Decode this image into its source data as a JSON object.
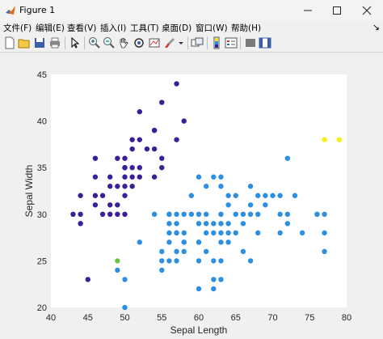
{
  "window": {
    "title": "Figure 1",
    "controls": {
      "minimize": "─",
      "maximize": "☐",
      "close": "✕"
    }
  },
  "menu": {
    "items": [
      "文件(F)",
      "编辑(E)",
      "查看(V)",
      "插入(I)",
      "工具(T)",
      "桌面(D)",
      "窗口(W)",
      "帮助(H)"
    ],
    "overflow": "↘"
  },
  "toolbar": {
    "icons": [
      "new-figure-icon",
      "open-file-icon",
      "save-icon",
      "print-icon",
      "select-pointer-icon",
      "zoom-in-icon",
      "zoom-out-icon",
      "pan-hand-icon",
      "rotate-3d-icon",
      "data-cursor-icon",
      "brush-icon",
      "brush-dropdown-icon",
      "link-plot-icon",
      "insert-colorbar-icon",
      "insert-legend-icon",
      "hide-plot-tools-icon",
      "show-plot-tools-icon"
    ]
  },
  "chart_data": {
    "type": "scatter",
    "xlabel": "Sepal Length",
    "ylabel": "Sepal Width",
    "xlim": [
      40,
      80
    ],
    "ylim": [
      20,
      45
    ],
    "xticks": [
      40,
      45,
      50,
      55,
      60,
      65,
      70,
      75,
      80
    ],
    "yticks": [
      20,
      25,
      30,
      35,
      40,
      45
    ],
    "grid": false,
    "colors": {
      "cluster1": "#3b1f99",
      "cluster2": "#2c8fe0",
      "cluster3": "#6fc63d",
      "cluster4": "#f2f20e"
    },
    "series": [
      {
        "color": "#3b1f99",
        "points": [
          [
            57,
            44
          ],
          [
            55,
            42
          ],
          [
            52,
            41
          ],
          [
            58,
            40
          ],
          [
            51,
            38
          ],
          [
            54,
            39
          ],
          [
            53,
            37
          ],
          [
            48,
            34
          ],
          [
            49,
            36
          ],
          [
            50,
            36
          ],
          [
            51,
            35
          ],
          [
            52,
            35
          ],
          [
            50,
            35
          ],
          [
            51,
            34
          ],
          [
            50,
            34
          ],
          [
            49,
            33
          ],
          [
            48,
            33
          ],
          [
            50,
            33
          ],
          [
            52,
            34
          ],
          [
            54,
            34
          ],
          [
            55,
            35
          ],
          [
            50,
            32
          ],
          [
            51,
            33
          ],
          [
            46,
            36
          ],
          [
            46,
            34
          ],
          [
            47,
            32
          ],
          [
            46,
            32
          ],
          [
            44,
            32
          ],
          [
            48,
            31
          ],
          [
            49,
            31
          ],
          [
            50,
            30
          ],
          [
            47,
            30
          ],
          [
            48,
            30
          ],
          [
            49,
            30
          ],
          [
            44,
            30
          ],
          [
            43,
            30
          ],
          [
            44,
            29
          ],
          [
            46,
            31
          ],
          [
            54,
            37
          ],
          [
            54,
            39
          ],
          [
            51,
            37
          ],
          [
            52,
            38
          ],
          [
            55,
            36
          ],
          [
            50,
            35
          ],
          [
            45,
            23
          ],
          [
            57,
            38
          ]
        ]
      },
      {
        "color": "#2c8fe0",
        "points": [
          [
            60,
            34
          ],
          [
            62,
            34
          ],
          [
            63,
            34
          ],
          [
            67,
            33
          ],
          [
            61,
            33
          ],
          [
            72,
            36
          ],
          [
            64,
            32
          ],
          [
            65,
            32
          ],
          [
            68,
            32
          ],
          [
            69,
            32
          ],
          [
            70,
            32
          ],
          [
            71,
            32
          ],
          [
            73,
            32
          ],
          [
            59,
            32
          ],
          [
            63,
            33
          ],
          [
            66,
            30
          ],
          [
            67,
            31
          ],
          [
            69,
            31
          ],
          [
            64,
            31
          ],
          [
            61,
            30
          ],
          [
            65,
            30
          ],
          [
            67,
            30
          ],
          [
            68,
            30
          ],
          [
            71,
            30
          ],
          [
            72,
            30
          ],
          [
            76,
            30
          ],
          [
            77,
            30
          ],
          [
            54,
            30
          ],
          [
            56,
            30
          ],
          [
            57,
            30
          ],
          [
            58,
            30
          ],
          [
            60,
            30
          ],
          [
            63,
            30
          ],
          [
            56,
            29
          ],
          [
            57,
            29
          ],
          [
            60,
            29
          ],
          [
            61,
            29
          ],
          [
            62,
            29
          ],
          [
            64,
            29
          ],
          [
            66,
            29
          ],
          [
            72,
            29
          ],
          [
            56,
            28
          ],
          [
            57,
            28
          ],
          [
            58,
            28
          ],
          [
            61,
            28
          ],
          [
            62,
            28
          ],
          [
            63,
            28
          ],
          [
            64,
            28
          ],
          [
            65,
            28
          ],
          [
            68,
            28
          ],
          [
            74,
            28
          ],
          [
            77,
            28
          ],
          [
            52,
            27
          ],
          [
            56,
            27
          ],
          [
            58,
            27
          ],
          [
            60,
            27
          ],
          [
            63,
            27
          ],
          [
            67,
            25
          ],
          [
            55,
            26
          ],
          [
            57,
            26
          ],
          [
            58,
            26
          ],
          [
            61,
            26
          ],
          [
            66,
            26
          ],
          [
            55,
            25
          ],
          [
            56,
            25
          ],
          [
            57,
            25
          ],
          [
            63,
            25
          ],
          [
            60,
            25
          ],
          [
            55,
            24
          ],
          [
            49,
            24
          ],
          [
            62,
            23
          ],
          [
            63,
            23
          ],
          [
            60,
            22
          ],
          [
            62,
            22
          ],
          [
            50,
            23
          ],
          [
            50,
            20
          ],
          [
            77,
            26
          ],
          [
            63,
            29
          ],
          [
            71,
            28
          ],
          [
            58,
            27
          ],
          [
            59,
            30
          ],
          [
            60,
            27
          ],
          [
            64,
            27
          ],
          [
            62,
            25
          ],
          [
            56,
            30
          ],
          [
            57,
            28
          ],
          [
            76,
            30
          ]
        ]
      },
      {
        "color": "#6fc63d",
        "points": [
          [
            49,
            25
          ]
        ]
      },
      {
        "color": "#f2f20e",
        "points": [
          [
            77,
            38
          ],
          [
            79,
            38
          ]
        ]
      }
    ]
  }
}
